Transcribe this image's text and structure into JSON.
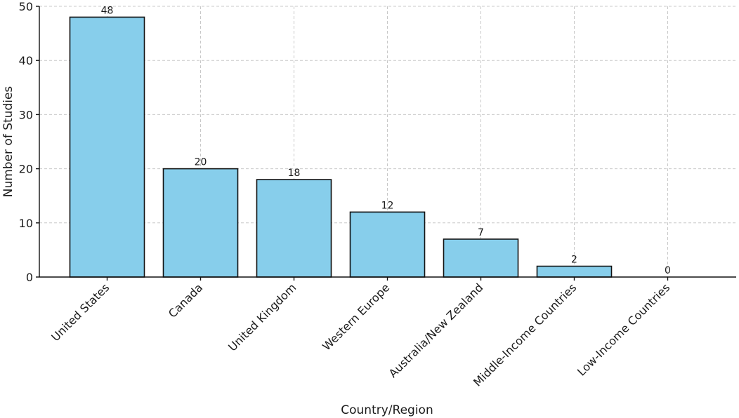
{
  "chart_data": {
    "type": "bar",
    "categories": [
      "United States",
      "Canada",
      "United Kingdom",
      "Western Europe",
      "Australia/New Zealand",
      "Middle-Income Countries",
      "Low-Income Countries"
    ],
    "values": [
      48,
      20,
      18,
      12,
      7,
      2,
      0
    ],
    "data_labels": [
      "48",
      "20",
      "18",
      "12",
      "7",
      "2",
      "0"
    ],
    "title": "",
    "xlabel": "Country/Region",
    "ylabel": "Number of Studies",
    "ylim": [
      0,
      50
    ],
    "yticks": [
      0,
      10,
      20,
      30,
      40,
      50
    ],
    "grid": true,
    "bar_color": "#87CEEB",
    "edge_color": "#000000"
  }
}
